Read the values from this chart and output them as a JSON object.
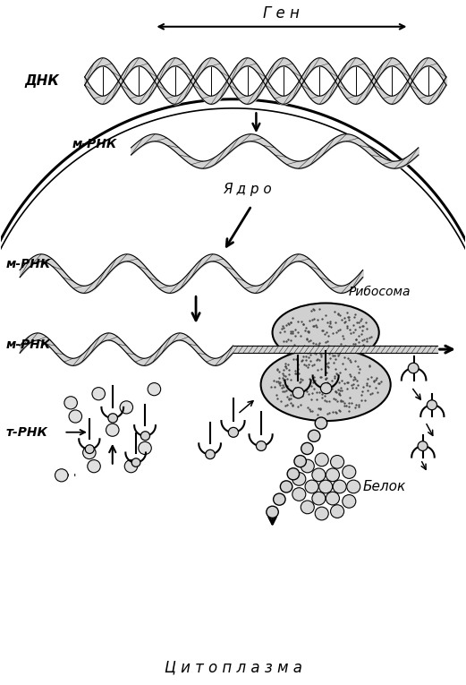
{
  "title": "",
  "bg_color": "#ffffff",
  "line_color": "#000000",
  "labels": {
    "gen": "Г е н",
    "dnk": "ДНК",
    "mrna_nucleus": "м-РНК",
    "yadro": "Я д р о",
    "mrna_cytoplasm": "м-РНК",
    "mrna_ribosome": "м-РНК",
    "ribosome": "Рибосома",
    "trna": "т-РНК",
    "belok": "Белок",
    "cytoplasm": "Ц и т о п л а з м а"
  },
  "figsize": [
    5.21,
    7.65
  ],
  "dpi": 100
}
